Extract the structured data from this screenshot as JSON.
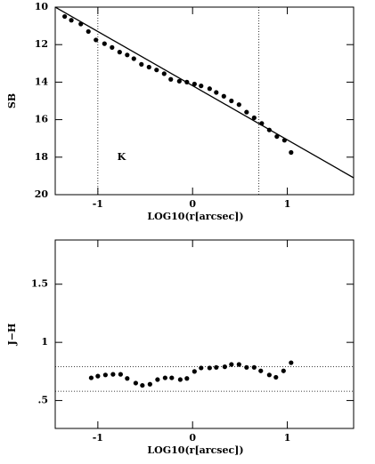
{
  "chart_data": [
    {
      "type": "scatter",
      "ylabel": "SB",
      "xlabel": "LOG10(r[arcsec])",
      "xlim": [
        -1.45,
        1.7
      ],
      "xticks": [
        -1,
        0,
        1
      ],
      "ylim": [
        10,
        20
      ],
      "yticks": [
        10,
        12,
        14,
        16,
        18,
        20
      ],
      "y_inverted": true,
      "color": "#000",
      "x": [
        -1.35,
        -1.28,
        -1.18,
        -1.1,
        -1.02,
        -0.93,
        -0.85,
        -0.77,
        -0.69,
        -0.62,
        -0.54,
        -0.46,
        -0.38,
        -0.3,
        -0.23,
        -0.14,
        -0.06,
        0.02,
        0.09,
        0.18,
        0.25,
        0.33,
        0.41,
        0.49,
        0.57,
        0.65,
        0.73,
        0.81,
        0.89,
        0.97,
        1.04
      ],
      "values": [
        10.5,
        10.7,
        10.9,
        11.3,
        11.75,
        11.95,
        12.15,
        12.4,
        12.55,
        12.75,
        13.05,
        13.2,
        13.35,
        13.55,
        13.85,
        13.95,
        14.0,
        14.1,
        14.2,
        14.35,
        14.55,
        14.75,
        15.0,
        15.2,
        15.6,
        15.9,
        16.2,
        16.55,
        16.9,
        17.1,
        17.75
      ],
      "fit": {
        "x": [
          -1.45,
          1.7
        ],
        "y": [
          10,
          19.1
        ]
      },
      "vlines": [
        -1,
        0.7
      ],
      "annotations": [
        {
          "text": "K",
          "x": -0.75,
          "y": 18
        }
      ]
    },
    {
      "type": "scatter",
      "ylabel": "J−H",
      "xlabel": "LOG10(r[arcsec])",
      "xlim": [
        -1.45,
        1.7
      ],
      "xticks": [
        -1,
        0,
        1
      ],
      "ylim": [
        0.26,
        1.88
      ],
      "yticks": [
        {
          "value": 0.5,
          "label": ".5"
        },
        1,
        1.5
      ],
      "color": "#000",
      "x": [
        -1.07,
        -1.0,
        -0.92,
        -0.84,
        -0.76,
        -0.69,
        -0.6,
        -0.53,
        -0.45,
        -0.37,
        -0.29,
        -0.22,
        -0.13,
        -0.06,
        0.02,
        0.09,
        0.18,
        0.25,
        0.34,
        0.41,
        0.49,
        0.57,
        0.65,
        0.72,
        0.81,
        0.88,
        0.96,
        1.04
      ],
      "values": [
        0.695,
        0.71,
        0.72,
        0.725,
        0.725,
        0.69,
        0.65,
        0.63,
        0.64,
        0.68,
        0.695,
        0.695,
        0.68,
        0.69,
        0.75,
        0.78,
        0.78,
        0.785,
        0.79,
        0.81,
        0.81,
        0.785,
        0.785,
        0.755,
        0.72,
        0.7,
        0.755,
        0.825
      ],
      "hlines": [
        0.79,
        0.58
      ]
    }
  ]
}
